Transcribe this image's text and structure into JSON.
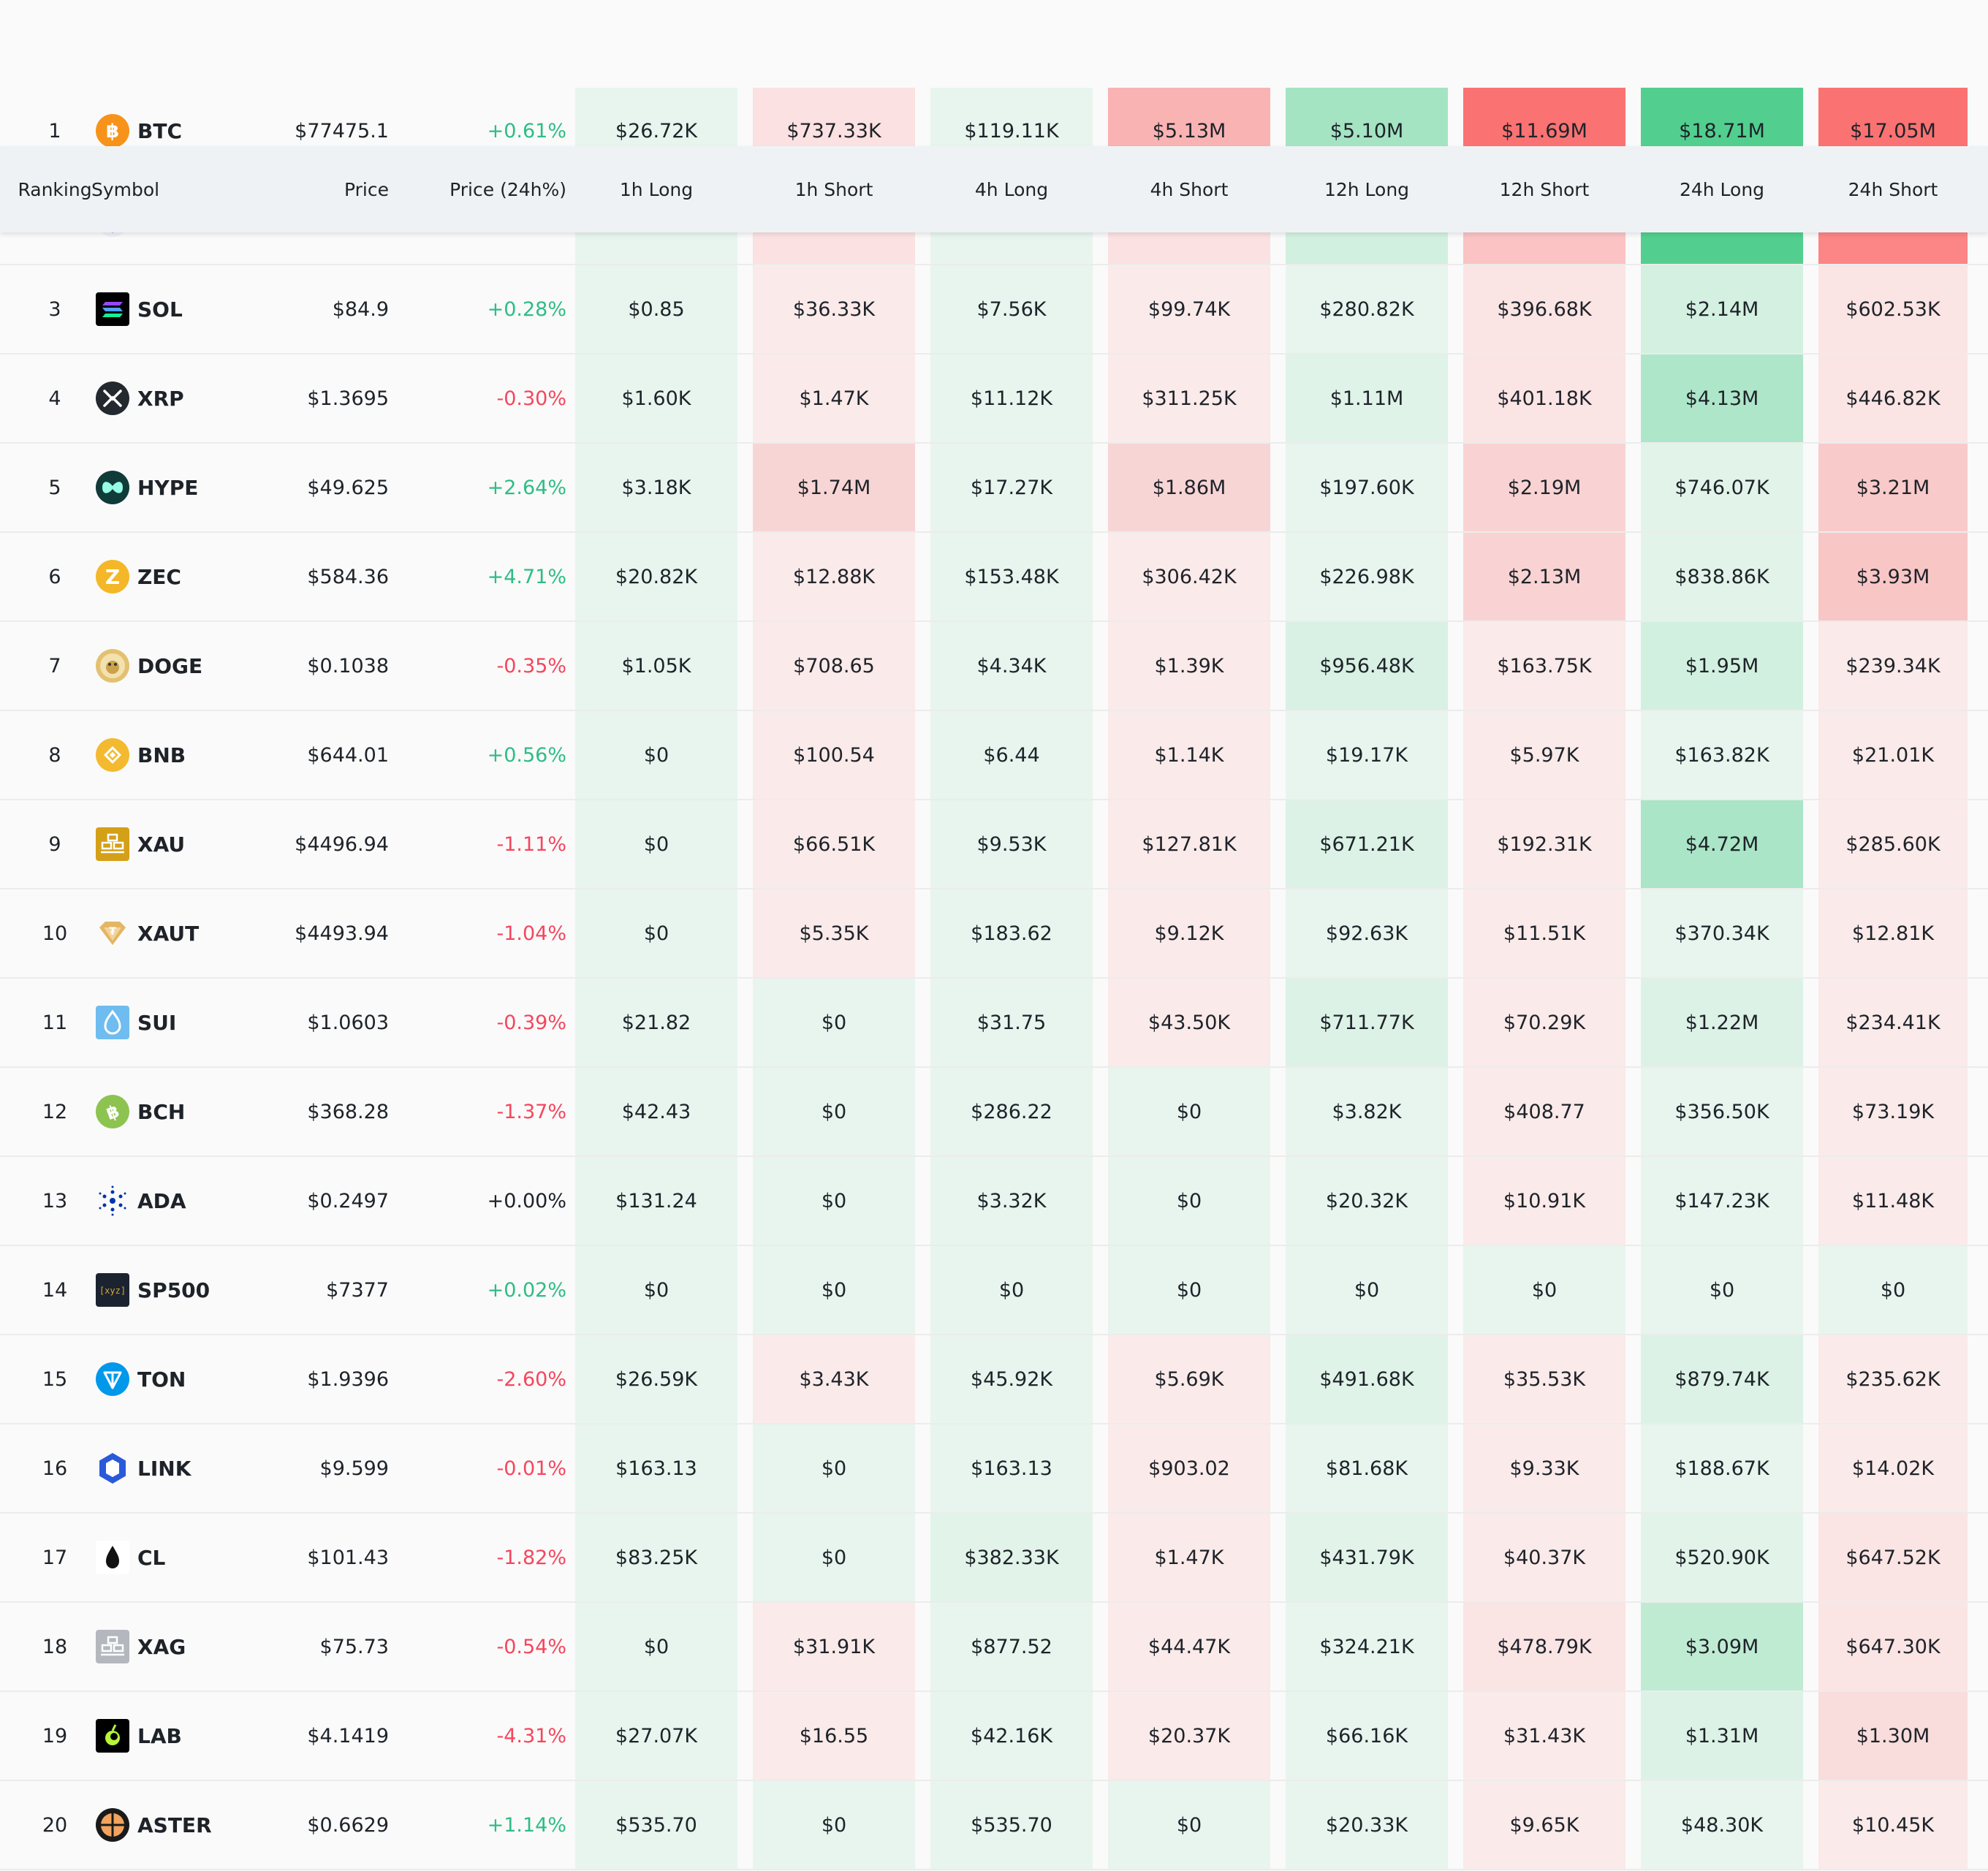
{
  "header": {
    "ranking": "Ranking",
    "symbol": "Symbol",
    "price": "Price",
    "price_change": "Price (24h%)",
    "cols": [
      "1h Long",
      "1h Short",
      "4h Long",
      "4h Short",
      "12h Long",
      "12h Short",
      "24h Long",
      "24h Short"
    ]
  },
  "colors": {
    "long_light": "#e7f5ee",
    "short_light": "#fbeaea",
    "up_text": "#2ebd85",
    "down_text": "#f6465d",
    "header_bg": "#eff2f5"
  },
  "rows": [
    {
      "rank": "1",
      "symbol": "BTC",
      "icon": "btc-icon",
      "price": "$77475.1",
      "change": "+0.61%",
      "dir": "up",
      "cells": [
        "$26.72K",
        "$737.33K",
        "$119.11K",
        "$5.13M",
        "$5.10M",
        "$11.69M",
        "$18.71M",
        "$17.05M"
      ],
      "cell_colors": [
        "#e7f5ee",
        "#fbe1e1",
        "#e7f5ee",
        "#fab3b3",
        "#a4e4c3",
        "#fb7272",
        "#52cf8e",
        "#fb7272"
      ]
    },
    {
      "rank": "",
      "symbol": "",
      "icon": "eth-icon",
      "price": "",
      "change": "",
      "dir": "up",
      "cells": [
        "",
        "",
        "",
        "",
        "",
        "",
        "",
        ""
      ],
      "cell_colors": [
        "#e7f5ee",
        "#fbe1e1",
        "#e7f5ee",
        "#fbe1e1",
        "#d2f0e0",
        "#fbc3c3",
        "#52cf8e",
        "#fc8585"
      ]
    },
    {
      "rank": "3",
      "symbol": "SOL",
      "icon": "sol-icon",
      "price": "$84.9",
      "change": "+0.28%",
      "dir": "up",
      "cells": [
        "$0.85",
        "$36.33K",
        "$7.56K",
        "$99.74K",
        "$280.82K",
        "$396.68K",
        "$2.14M",
        "$602.53K"
      ],
      "cell_colors": [
        "#e7f5ee",
        "#fbeaea",
        "#e7f5ee",
        "#fbeaea",
        "#e7f5ee",
        "#fbe4e4",
        "#d3f0e0",
        "#fbe4e4"
      ]
    },
    {
      "rank": "4",
      "symbol": "XRP",
      "icon": "xrp-icon",
      "price": "$1.3695",
      "change": "-0.30%",
      "dir": "down",
      "cells": [
        "$1.60K",
        "$1.47K",
        "$11.12K",
        "$311.25K",
        "$1.11M",
        "$401.18K",
        "$4.13M",
        "$446.82K"
      ],
      "cell_colors": [
        "#e7f5ee",
        "#fbeaea",
        "#e7f5ee",
        "#fbeaea",
        "#dff3e8",
        "#fbe4e4",
        "#aee6c9",
        "#fbe4e4"
      ]
    },
    {
      "rank": "5",
      "symbol": "HYPE",
      "icon": "hype-icon",
      "price": "$49.625",
      "change": "+2.64%",
      "dir": "up",
      "cells": [
        "$3.18K",
        "$1.74M",
        "$17.27K",
        "$1.86M",
        "$197.60K",
        "$2.19M",
        "$746.07K",
        "$3.21M"
      ],
      "cell_colors": [
        "#e7f5ee",
        "#f8d5d5",
        "#e7f5ee",
        "#f8d5d5",
        "#e7f5ee",
        "#f9d3d3",
        "#e2f4ea",
        "#f9caca"
      ]
    },
    {
      "rank": "6",
      "symbol": "ZEC",
      "icon": "zec-icon",
      "price": "$584.36",
      "change": "+4.71%",
      "dir": "up",
      "cells": [
        "$20.82K",
        "$12.88K",
        "$153.48K",
        "$306.42K",
        "$226.98K",
        "$2.13M",
        "$838.86K",
        "$3.93M"
      ],
      "cell_colors": [
        "#e7f5ee",
        "#fbeaea",
        "#e7f5ee",
        "#fbeaea",
        "#e7f5ee",
        "#f9d3d3",
        "#e2f4ea",
        "#f9c6c6"
      ]
    },
    {
      "rank": "7",
      "symbol": "DOGE",
      "icon": "doge-icon",
      "price": "$0.1038",
      "change": "-0.35%",
      "dir": "down",
      "cells": [
        "$1.05K",
        "$708.65",
        "$4.34K",
        "$1.39K",
        "$956.48K",
        "$163.75K",
        "$1.95M",
        "$239.34K"
      ],
      "cell_colors": [
        "#e7f5ee",
        "#fbeaea",
        "#e7f5ee",
        "#fbeaea",
        "#d8f1e4",
        "#fbeaea",
        "#d2f0e0",
        "#fbeaea"
      ]
    },
    {
      "rank": "8",
      "symbol": "BNB",
      "icon": "bnb-icon",
      "price": "$644.01",
      "change": "+0.56%",
      "dir": "up",
      "cells": [
        "$0",
        "$100.54",
        "$6.44",
        "$1.14K",
        "$19.17K",
        "$5.97K",
        "$163.82K",
        "$21.01K"
      ],
      "cell_colors": [
        "#e7f5ee",
        "#fbeaea",
        "#e7f5ee",
        "#fbeaea",
        "#e7f5ee",
        "#fbeaea",
        "#e7f5ee",
        "#fbeaea"
      ]
    },
    {
      "rank": "9",
      "symbol": "XAU",
      "icon": "xau-icon",
      "price": "$4496.94",
      "change": "-1.11%",
      "dir": "down",
      "cells": [
        "$0",
        "$66.51K",
        "$9.53K",
        "$127.81K",
        "$671.21K",
        "$192.31K",
        "$4.72M",
        "$285.60K"
      ],
      "cell_colors": [
        "#e7f5ee",
        "#fbeaea",
        "#e7f5ee",
        "#fbeaea",
        "#dcf2e6",
        "#fbeaea",
        "#a9e5c6",
        "#fbeaea"
      ]
    },
    {
      "rank": "10",
      "symbol": "XAUT",
      "icon": "xaut-icon",
      "price": "$4493.94",
      "change": "-1.04%",
      "dir": "down",
      "cells": [
        "$0",
        "$5.35K",
        "$183.62",
        "$9.12K",
        "$92.63K",
        "$11.51K",
        "$370.34K",
        "$12.81K"
      ],
      "cell_colors": [
        "#e7f5ee",
        "#fbeaea",
        "#e7f5ee",
        "#fbeaea",
        "#e7f5ee",
        "#fbeaea",
        "#e7f5ee",
        "#fbeaea"
      ]
    },
    {
      "rank": "11",
      "symbol": "SUI",
      "icon": "sui-icon",
      "price": "$1.0603",
      "change": "-0.39%",
      "dir": "down",
      "cells": [
        "$21.82",
        "$0",
        "$31.75",
        "$43.50K",
        "$711.77K",
        "$70.29K",
        "$1.22M",
        "$234.41K"
      ],
      "cell_colors": [
        "#e7f5ee",
        "#e7f5ee",
        "#e7f5ee",
        "#fbeaea",
        "#dcf2e6",
        "#fbeaea",
        "#dcf2e6",
        "#fbeaea"
      ]
    },
    {
      "rank": "12",
      "symbol": "BCH",
      "icon": "bch-icon",
      "price": "$368.28",
      "change": "-1.37%",
      "dir": "down",
      "cells": [
        "$42.43",
        "$0",
        "$286.22",
        "$0",
        "$3.82K",
        "$408.77",
        "$356.50K",
        "$73.19K"
      ],
      "cell_colors": [
        "#e7f5ee",
        "#e7f5ee",
        "#e7f5ee",
        "#e7f5ee",
        "#e7f5ee",
        "#fbeaea",
        "#e7f5ee",
        "#fbeaea"
      ]
    },
    {
      "rank": "13",
      "symbol": "ADA",
      "icon": "ada-icon",
      "price": "$0.2497",
      "change": "+0.00%",
      "dir": "flat",
      "cells": [
        "$131.24",
        "$0",
        "$3.32K",
        "$0",
        "$20.32K",
        "$10.91K",
        "$147.23K",
        "$11.48K"
      ],
      "cell_colors": [
        "#e7f5ee",
        "#e7f5ee",
        "#e7f5ee",
        "#e7f5ee",
        "#e7f5ee",
        "#fbeaea",
        "#e7f5ee",
        "#fbeaea"
      ]
    },
    {
      "rank": "14",
      "symbol": "SP500",
      "icon": "sp500-icon",
      "price": "$7377",
      "change": "+0.02%",
      "dir": "up",
      "cells": [
        "$0",
        "$0",
        "$0",
        "$0",
        "$0",
        "$0",
        "$0",
        "$0"
      ],
      "cell_colors": [
        "#e7f5ee",
        "#e7f5ee",
        "#e7f5ee",
        "#e7f5ee",
        "#e7f5ee",
        "#e7f5ee",
        "#e7f5ee",
        "#e7f5ee"
      ]
    },
    {
      "rank": "15",
      "symbol": "TON",
      "icon": "ton-icon",
      "price": "$1.9396",
      "change": "-2.60%",
      "dir": "down",
      "cells": [
        "$26.59K",
        "$3.43K",
        "$45.92K",
        "$5.69K",
        "$491.68K",
        "$35.53K",
        "$879.74K",
        "$235.62K"
      ],
      "cell_colors": [
        "#e7f5ee",
        "#fbeaea",
        "#e7f5ee",
        "#fbeaea",
        "#e0f3e9",
        "#fbeaea",
        "#dcf2e6",
        "#fbeaea"
      ]
    },
    {
      "rank": "16",
      "symbol": "LINK",
      "icon": "link-icon",
      "price": "$9.599",
      "change": "-0.01%",
      "dir": "down",
      "cells": [
        "$163.13",
        "$0",
        "$163.13",
        "$903.02",
        "$81.68K",
        "$9.33K",
        "$188.67K",
        "$14.02K"
      ],
      "cell_colors": [
        "#e7f5ee",
        "#e7f5ee",
        "#e7f5ee",
        "#fbeaea",
        "#e7f5ee",
        "#fbeaea",
        "#e7f5ee",
        "#fbeaea"
      ]
    },
    {
      "rank": "17",
      "symbol": "CL",
      "icon": "cl-icon",
      "price": "$101.43",
      "change": "-1.82%",
      "dir": "down",
      "cells": [
        "$83.25K",
        "$0",
        "$382.33K",
        "$1.47K",
        "$431.79K",
        "$40.37K",
        "$520.90K",
        "$647.52K"
      ],
      "cell_colors": [
        "#e7f5ee",
        "#e7f5ee",
        "#e2f4ea",
        "#fbeaea",
        "#e2f4ea",
        "#fbeaea",
        "#e2f4ea",
        "#fbe4e4"
      ]
    },
    {
      "rank": "18",
      "symbol": "XAG",
      "icon": "xag-icon",
      "price": "$75.73",
      "change": "-0.54%",
      "dir": "down",
      "cells": [
        "$0",
        "$31.91K",
        "$877.52",
        "$44.47K",
        "$324.21K",
        "$478.79K",
        "$3.09M",
        "$647.30K"
      ],
      "cell_colors": [
        "#e7f5ee",
        "#fbeaea",
        "#e7f5ee",
        "#fbeaea",
        "#e7f5ee",
        "#fbe4e4",
        "#bfebd3",
        "#fbe4e4"
      ]
    },
    {
      "rank": "19",
      "symbol": "LAB",
      "icon": "lab-icon",
      "price": "$4.1419",
      "change": "-4.31%",
      "dir": "down",
      "cells": [
        "$27.07K",
        "$16.55",
        "$42.16K",
        "$20.37K",
        "$66.16K",
        "$31.43K",
        "$1.31M",
        "$1.30M"
      ],
      "cell_colors": [
        "#e7f5ee",
        "#fbeaea",
        "#e7f5ee",
        "#fbeaea",
        "#e7f5ee",
        "#fbeaea",
        "#dcf2e6",
        "#f9dcdc"
      ]
    },
    {
      "rank": "20",
      "symbol": "ASTER",
      "icon": "aster-icon",
      "price": "$0.6629",
      "change": "+1.14%",
      "dir": "up",
      "cells": [
        "$535.70",
        "$0",
        "$535.70",
        "$0",
        "$20.33K",
        "$9.65K",
        "$48.30K",
        "$10.45K"
      ],
      "cell_colors": [
        "#e7f5ee",
        "#e7f5ee",
        "#e7f5ee",
        "#e7f5ee",
        "#e7f5ee",
        "#fbeaea",
        "#e7f5ee",
        "#fbeaea"
      ]
    }
  ]
}
